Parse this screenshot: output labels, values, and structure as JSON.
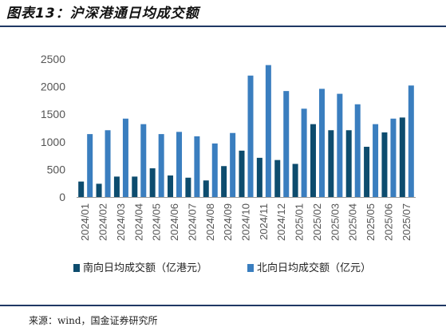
{
  "page": {
    "title": "图表13：沪深港通日均成交额",
    "source": "来源：wind，国金证券研究所"
  },
  "colors": {
    "accent": "#1f3864",
    "south": "#0d4c6e",
    "north": "#3a7ebf",
    "axis": "#999999",
    "tick": "#555555"
  },
  "chart_data": {
    "type": "bar",
    "categories": [
      "2024/01",
      "2024/02",
      "2024/03",
      "2024/04",
      "2024/05",
      "2024/06",
      "2024/07",
      "2024/08",
      "2024/09",
      "2024/10",
      "2024/11",
      "2024/12",
      "2025/01",
      "2025/02",
      "2025/03",
      "2025/04",
      "2025/05",
      "2025/06",
      "2025/07"
    ],
    "series": [
      {
        "name": "南向日均成交额（亿港元）",
        "color": "#0d4c6e",
        "values": [
          280,
          240,
          370,
          370,
          520,
          390,
          350,
          300,
          560,
          840,
          710,
          670,
          600,
          1320,
          1210,
          1210,
          910,
          1170,
          1440
        ]
      },
      {
        "name": "北向日均成交额（亿元）",
        "color": "#3a7ebf",
        "values": [
          1140,
          1210,
          1420,
          1320,
          1140,
          1180,
          1100,
          970,
          1160,
          2200,
          2390,
          1920,
          1600,
          1960,
          1870,
          1680,
          1320,
          1420,
          2020
        ]
      }
    ],
    "ylim": [
      0,
      2500
    ],
    "yticks": [
      0,
      500,
      1000,
      1500,
      2000,
      2500
    ],
    "legend": "bottom",
    "grid": false
  }
}
